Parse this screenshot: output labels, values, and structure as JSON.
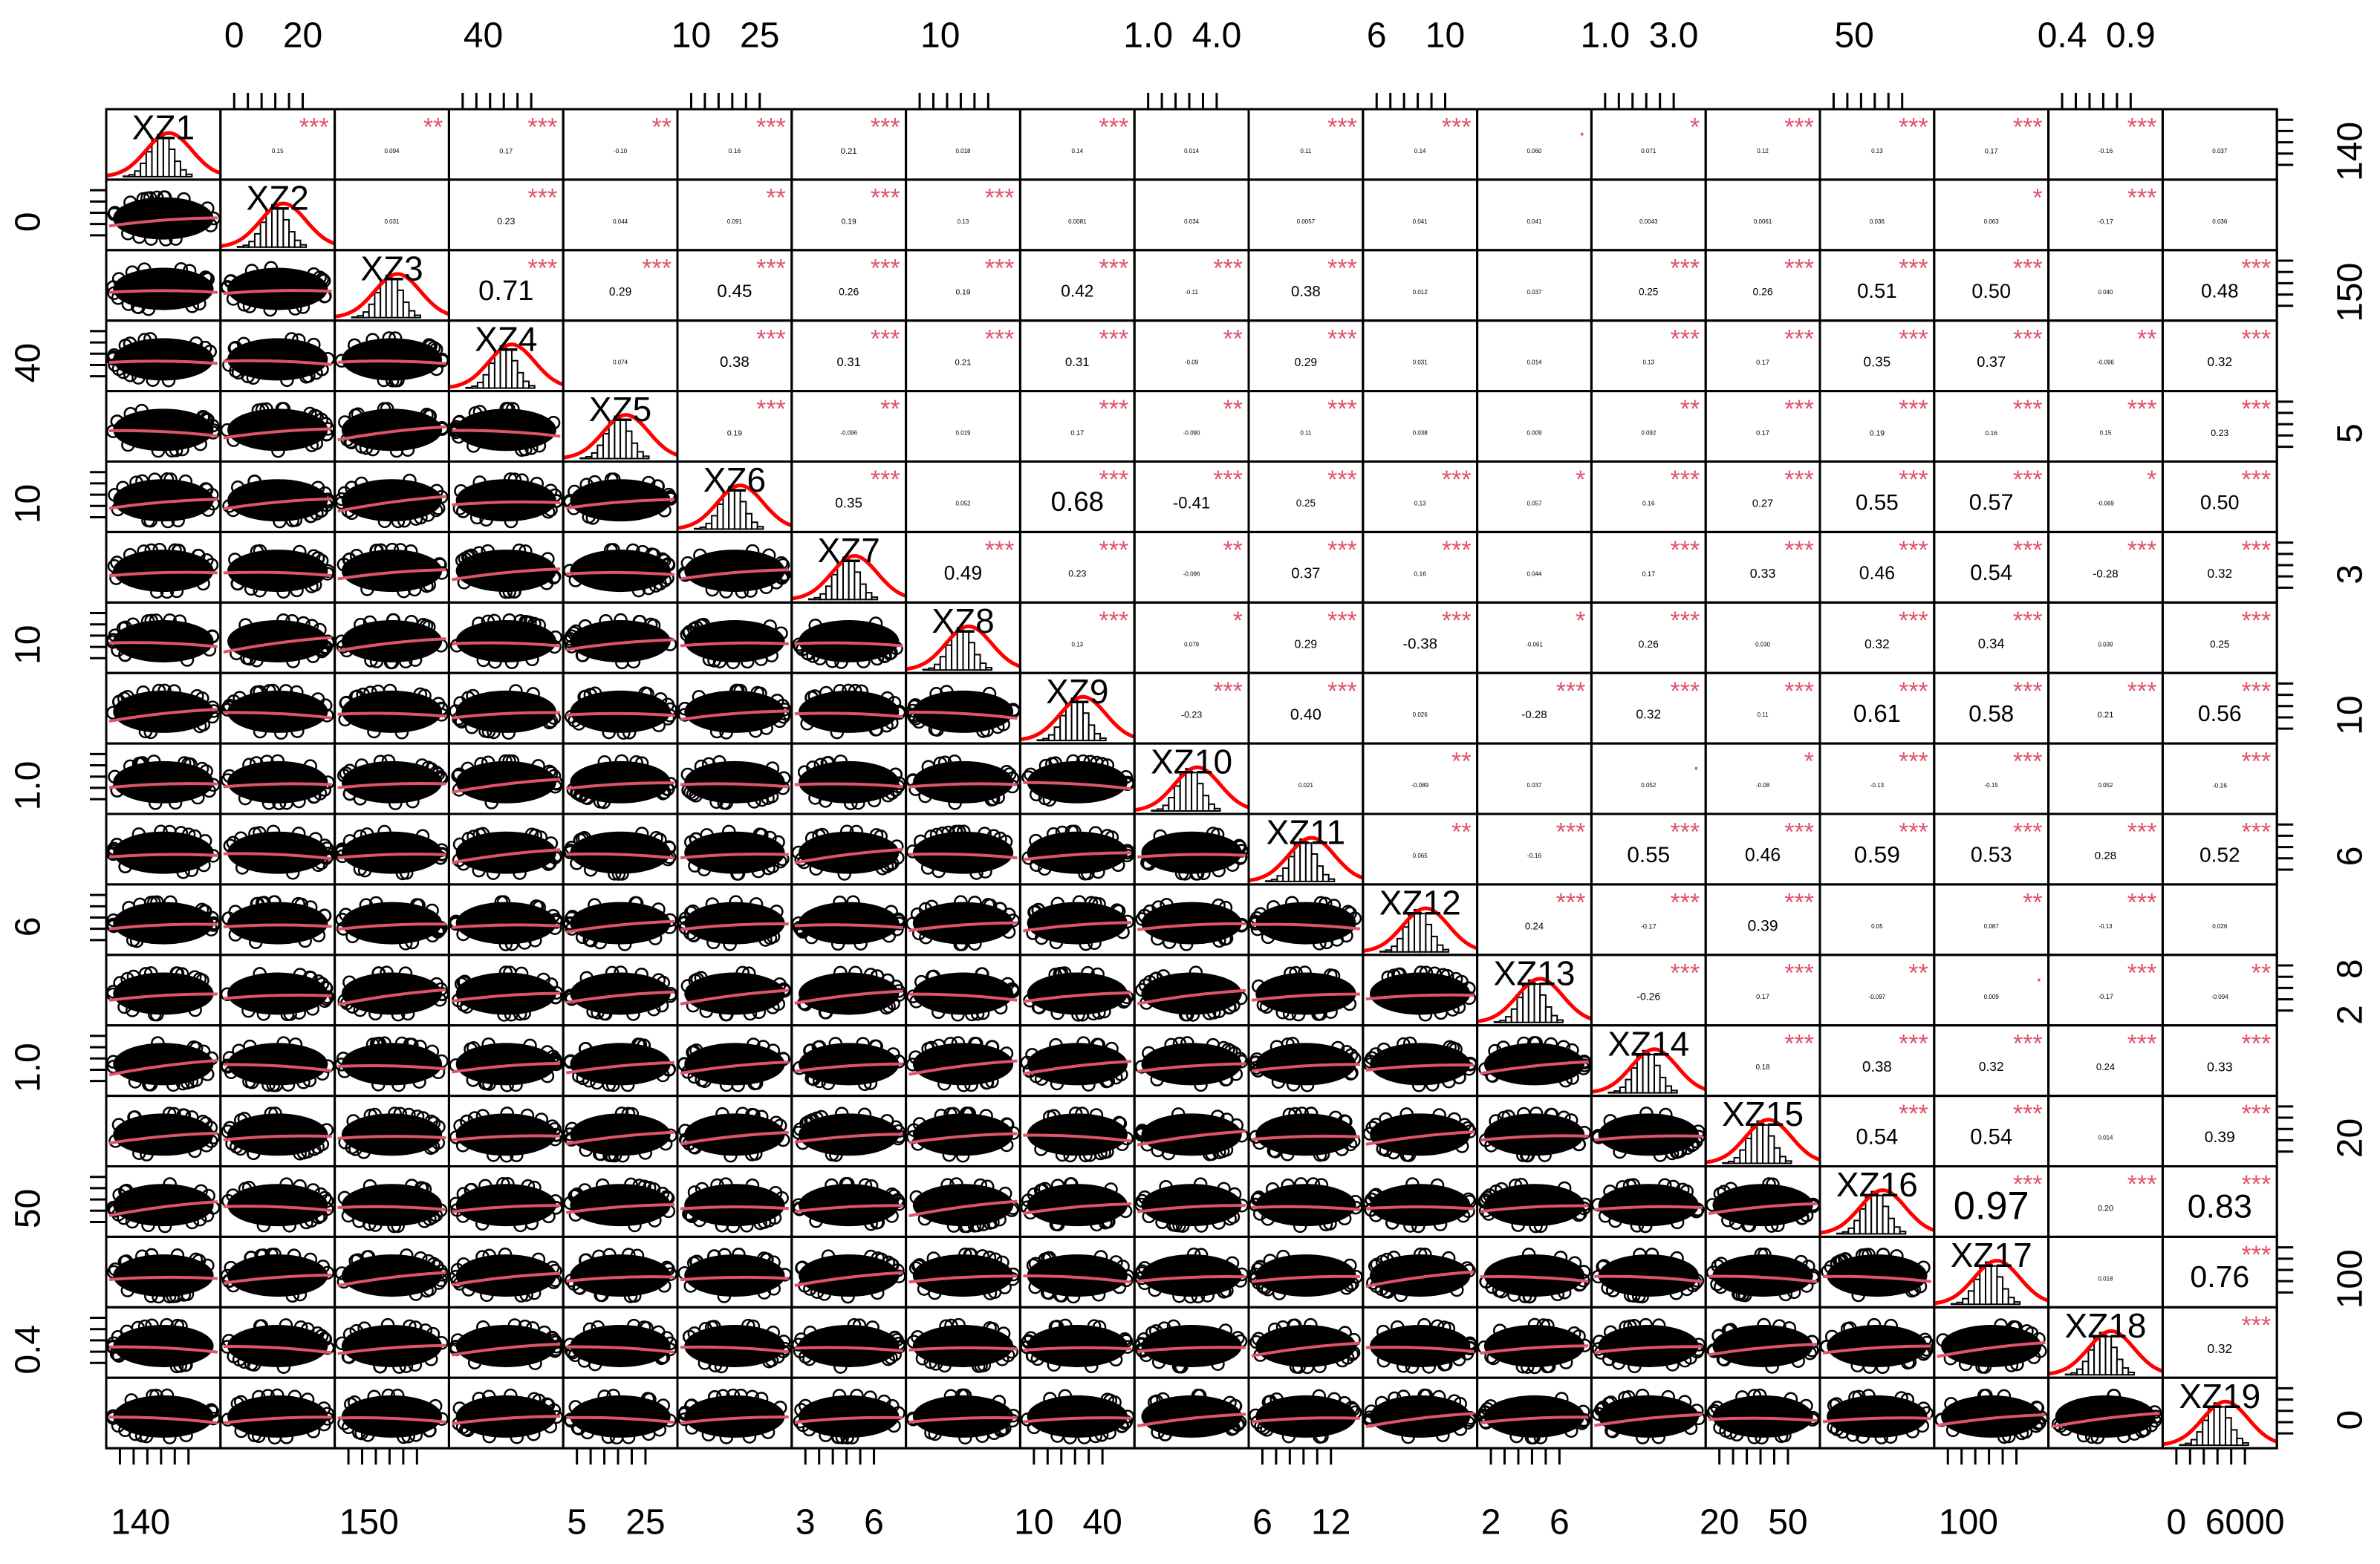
{
  "chart_data": {
    "type": "correlation_matrix",
    "variables": [
      "XZ1",
      "XZ2",
      "XZ3",
      "XZ4",
      "XZ5",
      "XZ6",
      "XZ7",
      "XZ8",
      "XZ9",
      "XZ10",
      "XZ11",
      "XZ12",
      "XZ13",
      "XZ14",
      "XZ15",
      "XZ16",
      "XZ17",
      "XZ18",
      "XZ19"
    ],
    "x_ticks": [
      [
        140
      ],
      [
        0,
        20
      ],
      [
        150
      ],
      [
        40
      ],
      [
        5,
        25
      ],
      [
        10,
        25
      ],
      [
        3,
        6
      ],
      [
        10
      ],
      [
        10,
        40
      ],
      [
        {
          "value": 1,
          "label": "1.0"
        },
        {
          "value": 4,
          "label": "4.0"
        }
      ],
      [
        6,
        12
      ],
      [
        6,
        10
      ],
      [
        2,
        6
      ],
      [
        {
          "value": 1,
          "label": "1.0"
        },
        {
          "value": 3,
          "label": "3.0"
        }
      ],
      [
        20,
        50
      ],
      [
        50
      ],
      [
        100
      ],
      [
        0.4,
        0.9
      ],
      [
        0,
        6000
      ]
    ],
    "y_ticks": [
      [
        140
      ],
      [
        0
      ],
      [
        150
      ],
      [
        40
      ],
      [
        5
      ],
      [
        10
      ],
      [
        3
      ],
      [
        10
      ],
      [
        10
      ],
      [
        {
          "value": 1,
          "label": "1.0"
        }
      ],
      [
        6
      ],
      [
        6
      ],
      [
        2,
        8
      ],
      [
        {
          "value": 1,
          "label": "1.0"
        }
      ],
      [
        20
      ],
      [
        50
      ],
      [
        100
      ],
      [
        0.4
      ],
      [
        0
      ]
    ],
    "correlations": [
      [
        {
          "value": 0.15,
          "label": "0.15",
          "stars": "***"
        },
        {
          "value": 0.094,
          "label": "0.094",
          "stars": "**"
        },
        {
          "value": 0.17,
          "label": "0.17",
          "stars": "***"
        },
        {
          "value": -0.1,
          "label": "-0.10",
          "stars": "**"
        },
        {
          "value": 0.16,
          "label": "0.16",
          "stars": "***"
        },
        {
          "value": 0.21,
          "label": "0.21",
          "stars": "***"
        },
        {
          "value": 0.018,
          "label": "0.018"
        },
        {
          "value": 0.14,
          "label": "0.14",
          "stars": "***"
        },
        {
          "value": 0.014,
          "label": "0.014"
        },
        {
          "value": 0.11,
          "label": "0.11",
          "stars": "***"
        },
        {
          "value": 0.14,
          "label": "0.14",
          "stars": "***"
        },
        {
          "value": 0.06,
          "label": "0.060",
          "stars": "."
        },
        {
          "value": 0.071,
          "label": "0.071",
          "stars": "*"
        },
        {
          "value": 0.12,
          "label": "0.12",
          "stars": "***"
        },
        {
          "value": 0.13,
          "label": "0.13",
          "stars": "***"
        },
        {
          "value": 0.17,
          "label": "0.17",
          "stars": "***"
        },
        {
          "value": -0.16,
          "label": "-0.16",
          "stars": "***"
        },
        {
          "value": 0.037,
          "label": "0.037"
        }
      ],
      [
        {
          "value": 0.031,
          "label": "0.031"
        },
        {
          "value": 0.23,
          "label": "0.23",
          "stars": "***"
        },
        {
          "value": 0.044,
          "label": "0.044"
        },
        {
          "value": 0.091,
          "label": "0.091",
          "stars": "**"
        },
        {
          "value": 0.19,
          "label": "0.19",
          "stars": "***"
        },
        {
          "value": 0.13,
          "label": "0.13",
          "stars": "***"
        },
        {
          "value": 0.0081,
          "label": "0.0081"
        },
        {
          "value": 0.034,
          "label": "0.034"
        },
        {
          "value": 0.0057,
          "label": "0.0057"
        },
        {
          "value": 0.041,
          "label": "0.041"
        },
        {
          "value": 0.041,
          "label": "0.041"
        },
        {
          "value": 0.0043,
          "label": "0.0043"
        },
        {
          "value": 0.0061,
          "label": "0.0061"
        },
        {
          "value": 0.036,
          "label": "0.036"
        },
        {
          "value": 0.063,
          "label": "0.063",
          "stars": "*"
        },
        {
          "value": -0.17,
          "label": "-0.17",
          "stars": "***"
        },
        {
          "value": 0.036,
          "label": "0.036"
        }
      ],
      [
        {
          "value": 0.71,
          "label": "0.71",
          "stars": "***"
        },
        {
          "value": 0.29,
          "label": "0.29",
          "stars": "***"
        },
        {
          "value": 0.45,
          "label": "0.45",
          "stars": "***"
        },
        {
          "value": 0.26,
          "label": "0.26",
          "stars": "***"
        },
        {
          "value": 0.19,
          "label": "0.19",
          "stars": "***"
        },
        {
          "value": 0.42,
          "label": "0.42",
          "stars": "***"
        },
        {
          "value": -0.11,
          "label": "-0.11",
          "stars": "***"
        },
        {
          "value": 0.38,
          "label": "0.38",
          "stars": "***"
        },
        {
          "value": 0.012,
          "label": "0.012"
        },
        {
          "value": 0.037,
          "label": "0.037"
        },
        {
          "value": 0.25,
          "label": "0.25",
          "stars": "***"
        },
        {
          "value": 0.26,
          "label": "0.26",
          "stars": "***"
        },
        {
          "value": 0.51,
          "label": "0.51",
          "stars": "***"
        },
        {
          "value": 0.5,
          "label": "0.50",
          "stars": "***"
        },
        {
          "value": 0.04,
          "label": "0.040"
        },
        {
          "value": 0.48,
          "label": "0.48",
          "stars": "***"
        }
      ],
      [
        {
          "value": 0.074,
          "label": "0.074"
        },
        {
          "value": 0.38,
          "label": "0.38",
          "stars": "***"
        },
        {
          "value": 0.31,
          "label": "0.31",
          "stars": "***"
        },
        {
          "value": 0.21,
          "label": "0.21",
          "stars": "***"
        },
        {
          "value": 0.31,
          "label": "0.31",
          "stars": "***"
        },
        {
          "value": -0.09,
          "label": "-0.09",
          "stars": "**"
        },
        {
          "value": 0.29,
          "label": "0.29",
          "stars": "***"
        },
        {
          "value": 0.031,
          "label": "0.031"
        },
        {
          "value": 0.014,
          "label": "0.014"
        },
        {
          "value": 0.13,
          "label": "0.13",
          "stars": "***"
        },
        {
          "value": 0.17,
          "label": "0.17",
          "stars": "***"
        },
        {
          "value": 0.35,
          "label": "0.35",
          "stars": "***"
        },
        {
          "value": 0.37,
          "label": "0.37",
          "stars": "***"
        },
        {
          "value": -0.096,
          "label": "-0.096",
          "stars": "**"
        },
        {
          "value": 0.32,
          "label": "0.32",
          "stars": "***"
        }
      ],
      [
        {
          "value": 0.19,
          "label": "0.19",
          "stars": "***"
        },
        {
          "value": -0.096,
          "label": "-0.096",
          "stars": "**"
        },
        {
          "value": 0.019,
          "label": "0.019"
        },
        {
          "value": 0.17,
          "label": "0.17",
          "stars": "***"
        },
        {
          "value": -0.09,
          "label": "-0.090",
          "stars": "**"
        },
        {
          "value": 0.11,
          "label": "0.11",
          "stars": "***"
        },
        {
          "value": 0.038,
          "label": "0.038"
        },
        {
          "value": 0.009,
          "label": "0.009"
        },
        {
          "value": 0.092,
          "label": "0.092",
          "stars": "**"
        },
        {
          "value": 0.17,
          "label": "0.17",
          "stars": "***"
        },
        {
          "value": 0.19,
          "label": "0.19",
          "stars": "***"
        },
        {
          "value": 0.16,
          "label": "0.16",
          "stars": "***"
        },
        {
          "value": 0.15,
          "label": "0.15",
          "stars": "***"
        },
        {
          "value": 0.23,
          "label": "0.23",
          "stars": "***"
        }
      ],
      [
        {
          "value": 0.35,
          "label": "0.35",
          "stars": "***"
        },
        {
          "value": 0.052,
          "label": "0.052"
        },
        {
          "value": 0.68,
          "label": "0.68",
          "stars": "***"
        },
        {
          "value": -0.41,
          "label": "-0.41",
          "stars": "***"
        },
        {
          "value": 0.25,
          "label": "0.25",
          "stars": "***"
        },
        {
          "value": 0.13,
          "label": "0.13",
          "stars": "***"
        },
        {
          "value": 0.057,
          "label": "0.057",
          "stars": "*"
        },
        {
          "value": 0.16,
          "label": "0.16",
          "stars": "***"
        },
        {
          "value": 0.27,
          "label": "0.27",
          "stars": "***"
        },
        {
          "value": 0.55,
          "label": "0.55",
          "stars": "***"
        },
        {
          "value": 0.57,
          "label": "0.57",
          "stars": "***"
        },
        {
          "value": -0.069,
          "label": "-0.069",
          "stars": "*"
        },
        {
          "value": 0.5,
          "label": "0.50",
          "stars": "***"
        }
      ],
      [
        {
          "value": 0.49,
          "label": "0.49",
          "stars": "***"
        },
        {
          "value": 0.23,
          "label": "0.23",
          "stars": "***"
        },
        {
          "value": -0.096,
          "label": "-0.096",
          "stars": "**"
        },
        {
          "value": 0.37,
          "label": "0.37",
          "stars": "***"
        },
        {
          "value": 0.16,
          "label": "0.16",
          "stars": "***"
        },
        {
          "value": 0.044,
          "label": "0.044"
        },
        {
          "value": 0.17,
          "label": "0.17",
          "stars": "***"
        },
        {
          "value": 0.33,
          "label": "0.33",
          "stars": "***"
        },
        {
          "value": 0.46,
          "label": "0.46",
          "stars": "***"
        },
        {
          "value": 0.54,
          "label": "0.54",
          "stars": "***"
        },
        {
          "value": -0.28,
          "label": "-0.28",
          "stars": "***"
        },
        {
          "value": 0.32,
          "label": "0.32",
          "stars": "***"
        }
      ],
      [
        {
          "value": 0.13,
          "label": "0.13",
          "stars": "***"
        },
        {
          "value": 0.079,
          "label": "0.079",
          "stars": "*"
        },
        {
          "value": 0.29,
          "label": "0.29",
          "stars": "***"
        },
        {
          "value": -0.38,
          "label": "-0.38",
          "stars": "***"
        },
        {
          "value": -0.061,
          "label": "-0.061",
          "stars": "*"
        },
        {
          "value": 0.26,
          "label": "0.26",
          "stars": "***"
        },
        {
          "value": 0.03,
          "label": "0.030"
        },
        {
          "value": 0.32,
          "label": "0.32",
          "stars": "***"
        },
        {
          "value": 0.34,
          "label": "0.34",
          "stars": "***"
        },
        {
          "value": 0.039,
          "label": "0.039"
        },
        {
          "value": 0.25,
          "label": "0.25",
          "stars": "***"
        }
      ],
      [
        {
          "value": -0.23,
          "label": "-0.23",
          "stars": "***"
        },
        {
          "value": 0.4,
          "label": "0.40",
          "stars": "***"
        },
        {
          "value": 0.026,
          "label": "0.026"
        },
        {
          "value": -0.28,
          "label": "-0.28",
          "stars": "***"
        },
        {
          "value": 0.32,
          "label": "0.32",
          "stars": "***"
        },
        {
          "value": 0.11,
          "label": "0.11",
          "stars": "***"
        },
        {
          "value": 0.61,
          "label": "0.61",
          "stars": "***"
        },
        {
          "value": 0.58,
          "label": "0.58",
          "stars": "***"
        },
        {
          "value": 0.21,
          "label": "0.21",
          "stars": "***"
        },
        {
          "value": 0.56,
          "label": "0.56",
          "stars": "***"
        }
      ],
      [
        {
          "value": 0.021,
          "label": "0.021"
        },
        {
          "value": -0.089,
          "label": "-0.089",
          "stars": "**"
        },
        {
          "value": 0.037,
          "label": "0.037"
        },
        {
          "value": 0.052,
          "label": "0.052",
          "stars": "."
        },
        {
          "value": -0.08,
          "label": "-0.08",
          "stars": "*"
        },
        {
          "value": -0.13,
          "label": "-0.13",
          "stars": "***"
        },
        {
          "value": -0.15,
          "label": "-0.15",
          "stars": "***"
        },
        {
          "value": 0.052,
          "label": "0.052"
        },
        {
          "value": -0.16,
          "label": "-0.16",
          "stars": "***"
        }
      ],
      [
        {
          "value": 0.065,
          "label": "0.065",
          "stars": "**"
        },
        {
          "value": -0.16,
          "label": "-0.16",
          "stars": "***"
        },
        {
          "value": 0.55,
          "label": "0.55",
          "stars": "***"
        },
        {
          "value": 0.46,
          "label": "0.46",
          "stars": "***"
        },
        {
          "value": 0.59,
          "label": "0.59",
          "stars": "***"
        },
        {
          "value": 0.53,
          "label": "0.53",
          "stars": "***"
        },
        {
          "value": 0.28,
          "label": "0.28",
          "stars": "***"
        },
        {
          "value": 0.52,
          "label": "0.52",
          "stars": "***"
        }
      ],
      [
        {
          "value": 0.24,
          "label": "0.24",
          "stars": "***"
        },
        {
          "value": -0.17,
          "label": "-0.17",
          "stars": "***"
        },
        {
          "value": 0.39,
          "label": "0.39",
          "stars": "***"
        },
        {
          "value": 0.05,
          "label": "0.05"
        },
        {
          "value": 0.087,
          "label": "0.087",
          "stars": "**"
        },
        {
          "value": -0.13,
          "label": "-0.13",
          "stars": "***"
        },
        {
          "value": 0.026,
          "label": "0.026"
        }
      ],
      [
        {
          "value": -0.26,
          "label": "-0.26",
          "stars": "***"
        },
        {
          "value": 0.17,
          "label": "0.17",
          "stars": "***"
        },
        {
          "value": -0.097,
          "label": "-0.097",
          "stars": "**"
        },
        {
          "value": 0.009,
          "label": "0.009",
          "stars": "."
        },
        {
          "value": -0.17,
          "label": "-0.17",
          "stars": "***"
        },
        {
          "value": -0.094,
          "label": "-0.094",
          "stars": "**"
        }
      ],
      [
        {
          "value": 0.18,
          "label": "0.18",
          "stars": "***"
        },
        {
          "value": 0.38,
          "label": "0.38",
          "stars": "***"
        },
        {
          "value": 0.32,
          "label": "0.32",
          "stars": "***"
        },
        {
          "value": 0.24,
          "label": "0.24",
          "stars": "***"
        },
        {
          "value": 0.33,
          "label": "0.33",
          "stars": "***"
        }
      ],
      [
        {
          "value": 0.54,
          "label": "0.54",
          "stars": "***"
        },
        {
          "value": 0.54,
          "label": "0.54",
          "stars": "***"
        },
        {
          "value": 0.014,
          "label": "0.014"
        },
        {
          "value": 0.39,
          "label": "0.39",
          "stars": "***"
        }
      ],
      [
        {
          "value": 0.97,
          "label": "0.97",
          "stars": "***"
        },
        {
          "value": 0.2,
          "label": "0.20",
          "stars": "***"
        },
        {
          "value": 0.83,
          "label": "0.83",
          "stars": "***"
        }
      ],
      [
        {
          "value": 0.018,
          "label": "0.018"
        },
        {
          "value": 0.76,
          "label": "0.76",
          "stars": "***"
        }
      ],
      [
        {
          "value": 0.32,
          "label": "0.32",
          "stars": "***"
        }
      ]
    ]
  }
}
